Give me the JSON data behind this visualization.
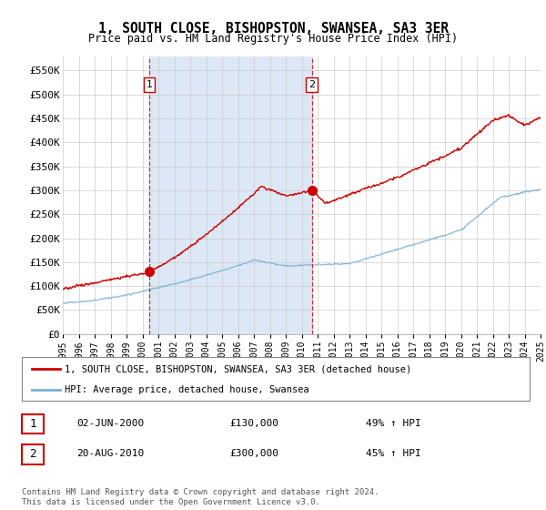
{
  "title": "1, SOUTH CLOSE, BISHOPSTON, SWANSEA, SA3 3ER",
  "subtitle": "Price paid vs. HM Land Registry's House Price Index (HPI)",
  "legend_line1": "1, SOUTH CLOSE, BISHOPSTON, SWANSEA, SA3 3ER (detached house)",
  "legend_line2": "HPI: Average price, detached house, Swansea",
  "annotation1_label": "1",
  "annotation1_date": "02-JUN-2000",
  "annotation1_price": "£130,000",
  "annotation1_hpi": "49% ↑ HPI",
  "annotation2_label": "2",
  "annotation2_date": "20-AUG-2010",
  "annotation2_price": "£300,000",
  "annotation2_hpi": "45% ↑ HPI",
  "footnote": "Contains HM Land Registry data © Crown copyright and database right 2024.\nThis data is licensed under the Open Government Licence v3.0.",
  "red_color": "#cc0000",
  "blue_color": "#7bafd4",
  "shade_color": "#dce8f5",
  "background_color": "#ffffff",
  "grid_color": "#cccccc",
  "ylim": [
    0,
    580000
  ],
  "yticks": [
    0,
    50000,
    100000,
    150000,
    200000,
    250000,
    300000,
    350000,
    400000,
    450000,
    500000,
    550000
  ],
  "ytick_labels": [
    "£0",
    "£50K",
    "£100K",
    "£150K",
    "£200K",
    "£250K",
    "£300K",
    "£350K",
    "£400K",
    "£450K",
    "£500K",
    "£550K"
  ],
  "x_start_year": 1995,
  "x_end_year": 2025,
  "sale1_year": 2000.42,
  "sale1_price": 130000,
  "sale2_year": 2010.63,
  "sale2_price": 300000
}
